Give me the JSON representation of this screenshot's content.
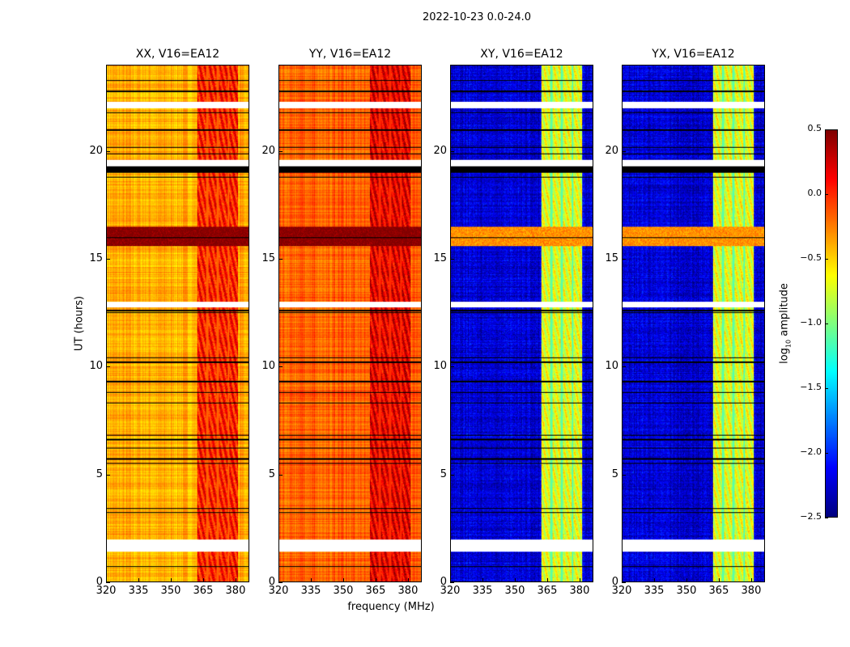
{
  "chart_data": {
    "type": "heatmap",
    "title": "2022-10-23 0.0-24.0",
    "xlabel": "frequency (MHz)",
    "ylabel": "UT (hours)",
    "xlim": [
      320,
      386.4
    ],
    "ylim": [
      0,
      24
    ],
    "xticks": [
      "320",
      "335",
      "350",
      "365",
      "380"
    ],
    "xtick_values": [
      320,
      335,
      350,
      365,
      380
    ],
    "yticks": [
      "0",
      "5",
      "10",
      "15",
      "20"
    ],
    "ytick_values": [
      0,
      5,
      10,
      15,
      20
    ],
    "colormap": "jet",
    "colorbar": {
      "label_main": "log",
      "label_sub": "10",
      "label_tail": " amplitude",
      "range": [
        -2.5,
        0.5
      ],
      "ticks": [
        "0.5",
        "0.0",
        "−0.5",
        "−1.0",
        "−1.5",
        "−2.0",
        "−2.5"
      ],
      "tick_values": [
        0.5,
        0.0,
        -0.5,
        -1.0,
        -1.5,
        -2.0,
        -2.5
      ]
    },
    "panels": [
      {
        "title": "XX, V16=EA12",
        "base_level": -0.4,
        "band_level": 0.05,
        "rfi_level": 0.5
      },
      {
        "title": "YY, V16=EA12",
        "base_level": -0.15,
        "band_level": 0.2,
        "rfi_level": 0.5
      },
      {
        "title": "XY, V16=EA12",
        "base_level": -2.25,
        "band_level": -0.7,
        "rfi_level": -0.3
      },
      {
        "title": "YX, V16=EA12",
        "base_level": -2.25,
        "band_level": -0.7,
        "rfi_level": -0.3
      }
    ],
    "rfi_band_mhz": [
      [
        362.5,
        366.5
      ],
      [
        367.5,
        371.5
      ],
      [
        372.5,
        376.5
      ],
      [
        377.5,
        381.5
      ]
    ],
    "rfi_time_hours": [
      15.6,
      16.5
    ],
    "flagged_white_hours": [
      [
        1.4,
        1.95
      ],
      [
        12.75,
        13.0
      ],
      [
        19.3,
        19.6
      ],
      [
        22.0,
        22.3
      ]
    ],
    "flagged_black_hours": [
      [
        19.0,
        19.3
      ]
    ],
    "black_line_hours": [
      0.7,
      3.4,
      3.2,
      5.5,
      5.7,
      6.2,
      6.6,
      6.8,
      8.3,
      8.8,
      9.3,
      10.2,
      10.4,
      12.5,
      12.6,
      16.0,
      18.8,
      19.9,
      20.2,
      21.0,
      21.8,
      22.8,
      23.3
    ]
  }
}
